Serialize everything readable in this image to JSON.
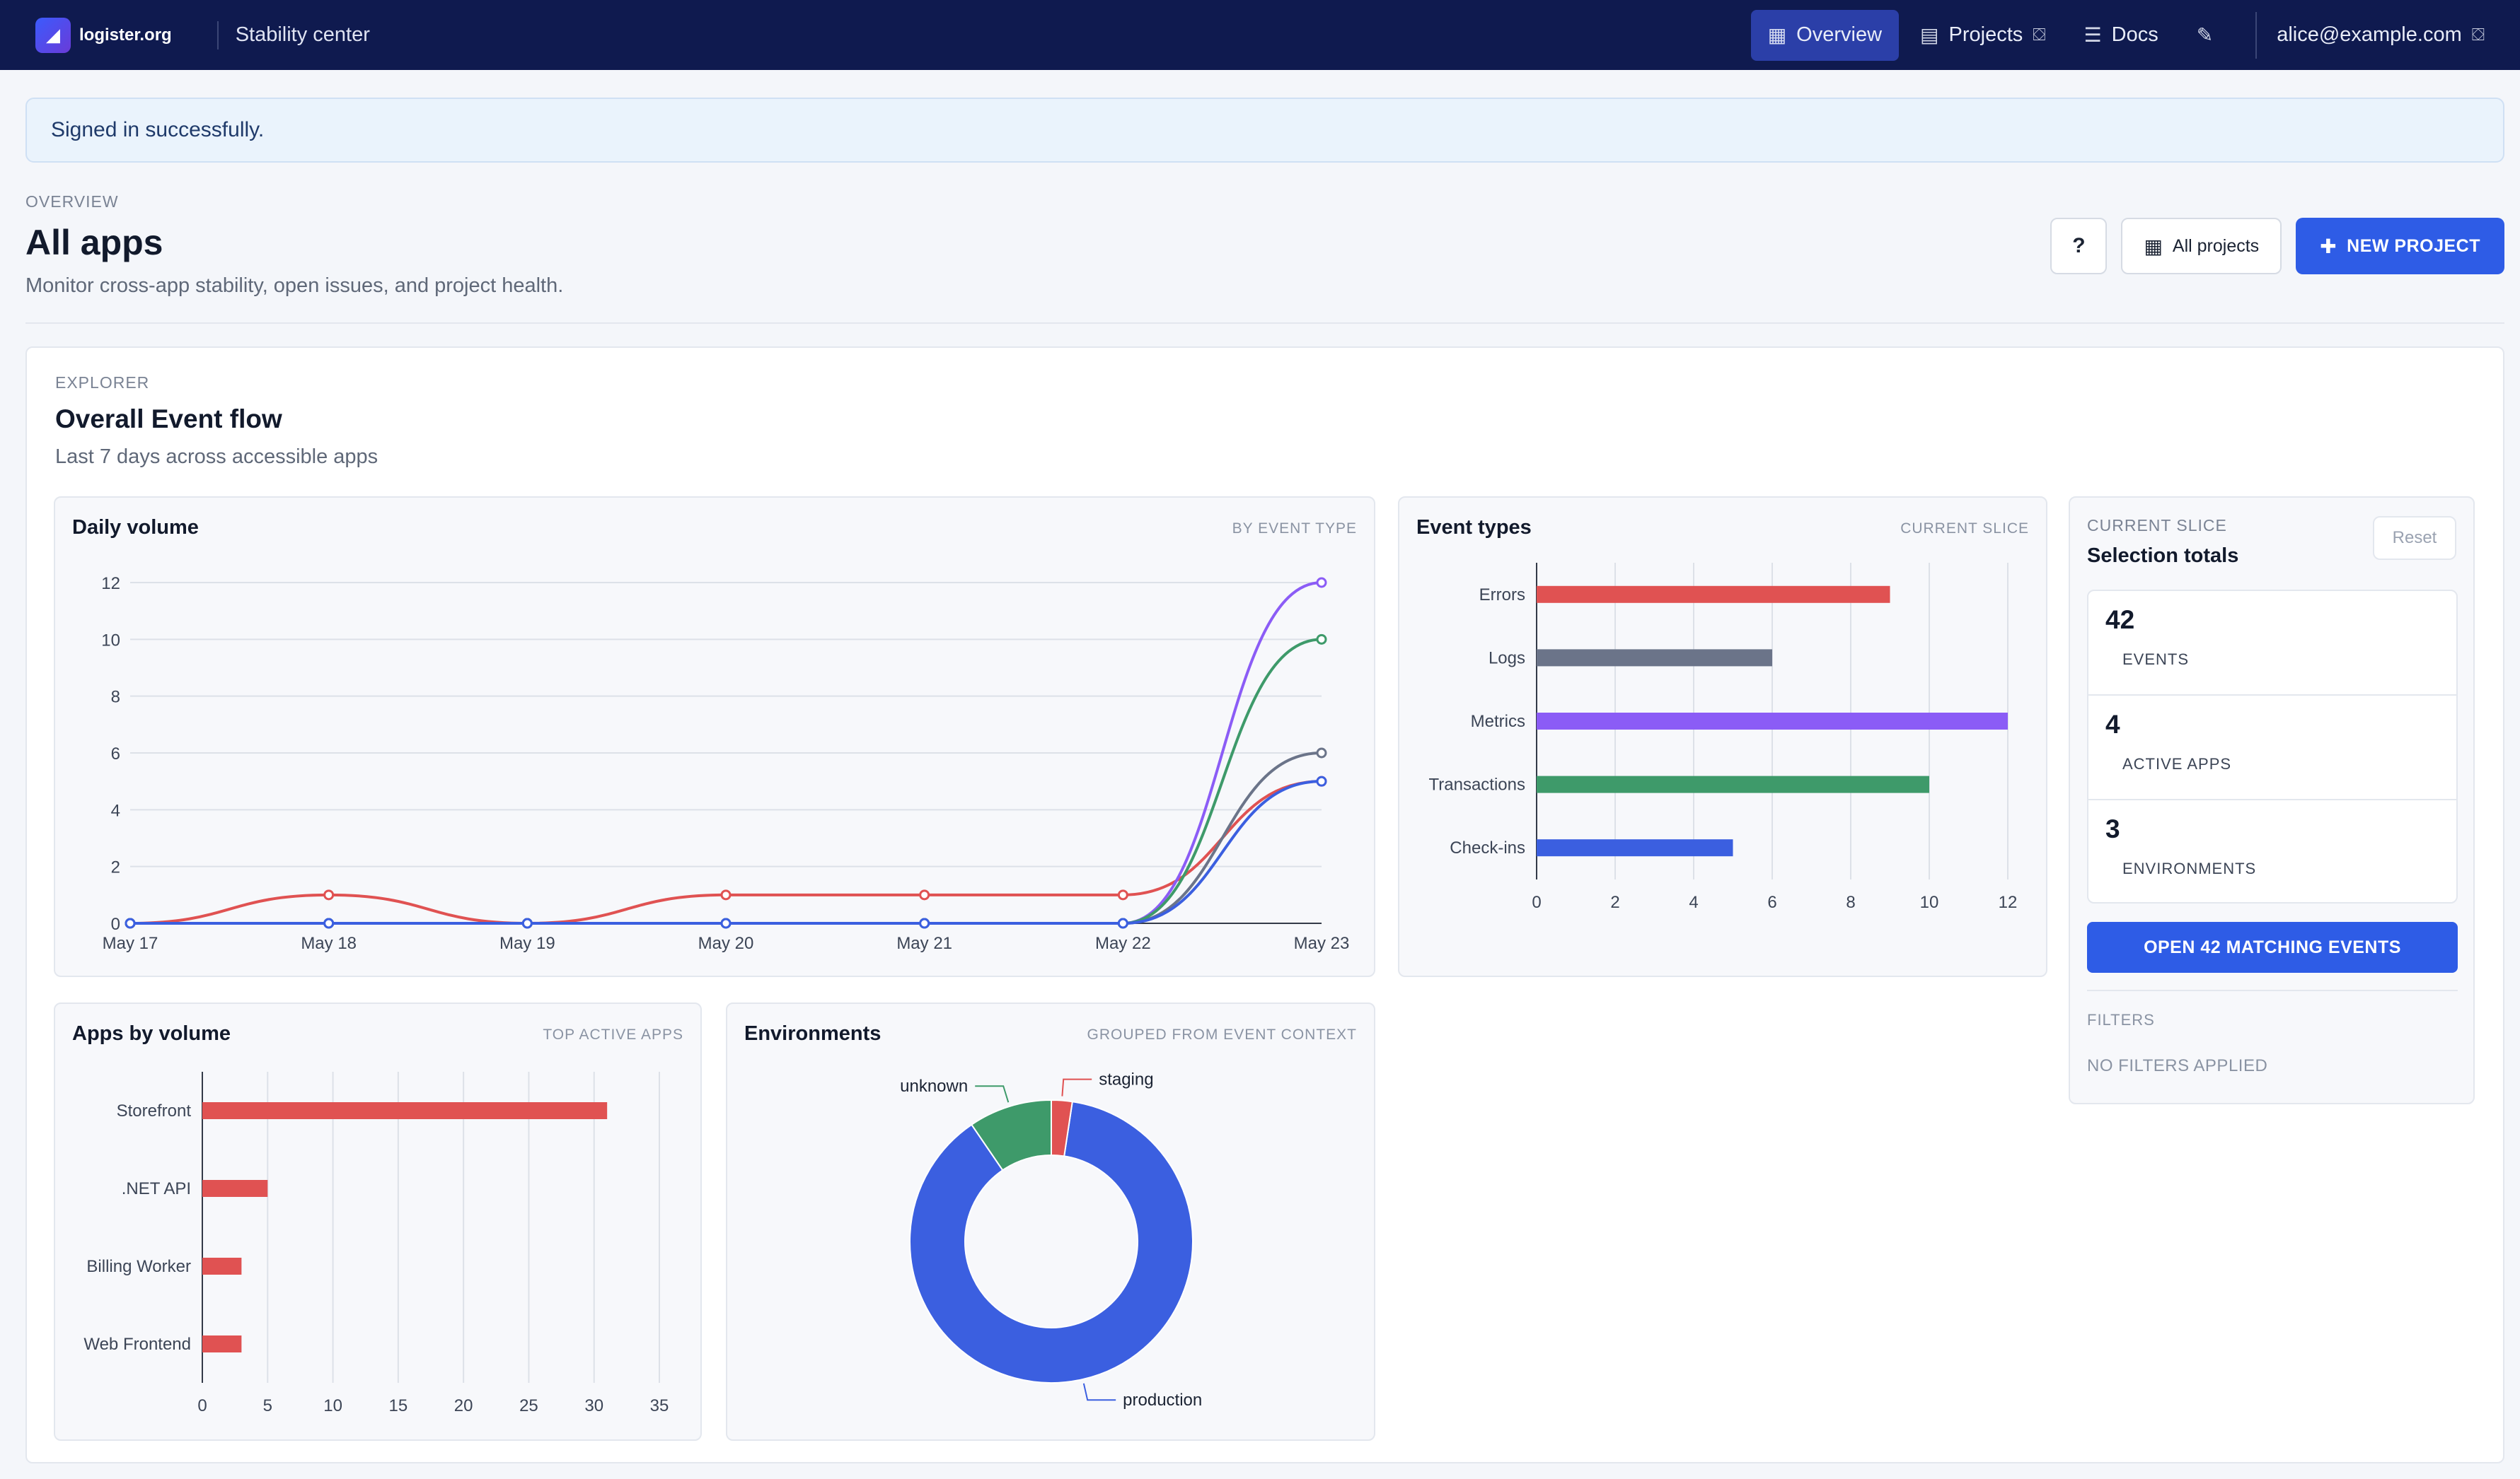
{
  "topbar": {
    "brand_name": "logister.org",
    "brand_logo_glyph": "◢",
    "section": "Stability center",
    "nav": [
      {
        "label": "Overview",
        "icon": "▦",
        "badge": ""
      },
      {
        "label": "Projects",
        "icon": "▤",
        "badge": "⛋"
      },
      {
        "label": "Docs",
        "icon": "☰",
        "badge": ""
      },
      {
        "label": "",
        "icon": "✎",
        "badge": ""
      }
    ],
    "user_email": "alice@example.com",
    "user_icon": "⛋"
  },
  "alert": {
    "message": "Signed in successfully."
  },
  "header": {
    "eyebrow": "OVERVIEW",
    "title": "All apps",
    "subtitle": "Monitor cross-app stability, open issues, and project health.",
    "help_label": "?",
    "all_projects_label": "All projects",
    "all_projects_icon": "▦",
    "new_project_label": "NEW PROJECT",
    "new_project_icon": "✚"
  },
  "explorer": {
    "eyebrow": "EXPLORER",
    "title": "Overall Event flow",
    "subtitle": "Last 7 days across accessible apps"
  },
  "cards": {
    "daily": {
      "title": "Daily volume",
      "tag": "BY EVENT TYPE"
    },
    "types": {
      "title": "Event types",
      "tag": "CURRENT SLICE"
    },
    "apps": {
      "title": "Apps by volume",
      "tag": "TOP ACTIVE APPS"
    },
    "envs": {
      "title": "Environments",
      "tag": "GROUPED FROM EVENT CONTEXT"
    }
  },
  "slice": {
    "eyebrow": "CURRENT SLICE",
    "title": "Selection totals",
    "reset_label": "Reset",
    "stats": [
      {
        "value": "42",
        "label": "EVENTS"
      },
      {
        "value": "4",
        "label": "ACTIVE APPS"
      },
      {
        "value": "3",
        "label": "ENVIRONMENTS"
      }
    ],
    "open_label": "OPEN 42 MATCHING EVENTS",
    "filters_label": "FILTERS",
    "filters_value": "NO FILTERS APPLIED"
  },
  "colors": {
    "errors": "#e05252",
    "logs": "#6b7489",
    "metrics": "#8b5cf6",
    "transactions": "#3e9a6a",
    "checkins": "#3b5fe0",
    "grid": "#dde1e8",
    "axis": "#333a48"
  },
  "chart_data": [
    {
      "type": "line",
      "x": [
        "May 17",
        "May 18",
        "May 19",
        "May 20",
        "May 21",
        "May 22",
        "May 23"
      ],
      "ylim": [
        0,
        12
      ],
      "yticks": [
        0,
        2,
        4,
        6,
        8,
        10,
        12
      ],
      "series": [
        {
          "key": "errors",
          "values": [
            0,
            1,
            0,
            1,
            1,
            1,
            5
          ]
        },
        {
          "key": "logs",
          "values": [
            0,
            0,
            0,
            0,
            0,
            0,
            6
          ]
        },
        {
          "key": "metrics",
          "values": [
            0,
            0,
            0,
            0,
            0,
            0,
            12
          ]
        },
        {
          "key": "transactions",
          "values": [
            0,
            0,
            0,
            0,
            0,
            0,
            10
          ]
        },
        {
          "key": "checkins",
          "values": [
            0,
            0,
            0,
            0,
            0,
            0,
            5
          ]
        }
      ],
      "grid": true,
      "title": "",
      "xlabel": "",
      "ylabel": ""
    },
    {
      "type": "bar",
      "orientation": "horizontal",
      "categories": [
        "Errors",
        "Logs",
        "Metrics",
        "Transactions",
        "Check-ins"
      ],
      "values": [
        9,
        6,
        12,
        10,
        5
      ],
      "color_keys": [
        "errors",
        "logs",
        "metrics",
        "transactions",
        "checkins"
      ],
      "xlim": [
        0,
        12
      ],
      "xticks": [
        0,
        2,
        4,
        6,
        8,
        10,
        12
      ],
      "grid": true,
      "title": "",
      "xlabel": "",
      "ylabel": ""
    },
    {
      "type": "bar",
      "orientation": "horizontal",
      "categories": [
        "Storefront",
        ".NET API",
        "Billing Worker",
        "Web Frontend"
      ],
      "values": [
        31,
        5,
        3,
        3
      ],
      "xlim": [
        0,
        35
      ],
      "xticks": [
        0,
        5,
        10,
        15,
        20,
        25,
        30,
        35
      ],
      "grid": true,
      "title": "",
      "xlabel": "",
      "ylabel": ""
    },
    {
      "type": "pie",
      "donut": true,
      "categories": [
        "production",
        "unknown",
        "staging"
      ],
      "values": [
        37,
        4,
        1
      ],
      "colors": [
        "#3b5fe0",
        "#3e9a6a",
        "#e05252"
      ],
      "title": ""
    }
  ]
}
